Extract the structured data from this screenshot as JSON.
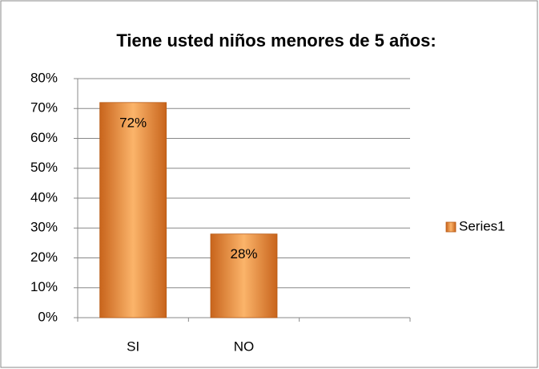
{
  "chart_data": {
    "type": "bar",
    "title": "Tiene usted niños menores de 5 años:",
    "categories": [
      "SI",
      "NO",
      null
    ],
    "series": [
      {
        "name": "Series1",
        "color": "#f79646",
        "values": [
          72,
          28,
          null
        ],
        "value_labels": [
          "72%",
          "28%",
          null
        ]
      }
    ],
    "ylim": [
      0,
      80
    ],
    "yticks": [
      {
        "value": 0,
        "label": "0%"
      },
      {
        "value": 10,
        "label": "10%"
      },
      {
        "value": 20,
        "label": "20%"
      },
      {
        "value": 30,
        "label": "30%"
      },
      {
        "value": 40,
        "label": "40%"
      },
      {
        "value": 50,
        "label": "50%"
      },
      {
        "value": 60,
        "label": "60%"
      },
      {
        "value": 70,
        "label": "70%"
      },
      {
        "value": 80,
        "label": "80%"
      }
    ],
    "grid": true,
    "legend": "right"
  }
}
